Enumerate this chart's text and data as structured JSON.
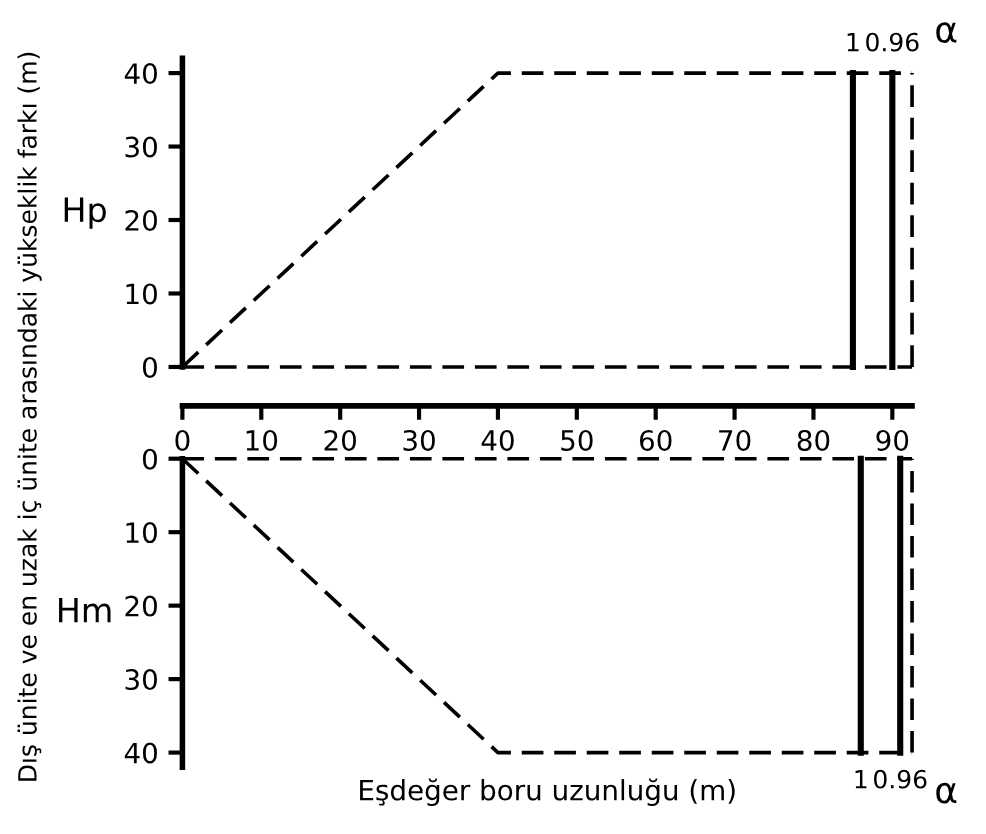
{
  "chart_data": [
    {
      "type": "line",
      "ylabel": "Hp",
      "line_style": "dashed",
      "annotations": [
        "Dış ünite ve en uzak iç ünite arasındaki yükseklik farkı (m)",
        {
          "text": "1",
          "x": 85,
          "y": 40
        },
        {
          "text": "0.96",
          "x": 90,
          "y": 40
        },
        "α"
      ],
      "series": [
        {
          "x": [
            0,
            40,
            92.5
          ],
          "values": [
            0,
            40,
            40
          ],
          "color": "#000000"
        },
        {
          "x": [
            0,
            92.5
          ],
          "values": [
            0,
            0
          ],
          "color": "#000000"
        }
      ],
      "ref_lines": [
        {
          "axis": "x",
          "value": 85,
          "color": "#000000",
          "line_style": "solid"
        },
        {
          "axis": "x",
          "value": 90,
          "color": "#000000",
          "line_style": "solid"
        },
        {
          "axis": "x",
          "value": 92.5,
          "color": "#000000",
          "line_style": "dashed"
        }
      ],
      "xlim": [
        0,
        92.5
      ],
      "ylim": [
        0,
        42
      ],
      "xticks": [
        0,
        10,
        20,
        30,
        40,
        50,
        60,
        70,
        80,
        90
      ],
      "yticks": [
        0,
        10,
        20,
        30,
        40
      ]
    },
    {
      "type": "line",
      "ylabel": "Hm",
      "xlabel": "Eşdeğer boru uzunluğu (m)",
      "line_style": "dashed",
      "annotations": [
        {
          "text": "1",
          "x": 86,
          "y": 40
        },
        {
          "text": "0.96",
          "x": 91,
          "y": 40
        },
        "α"
      ],
      "series": [
        {
          "x": [
            0,
            40,
            92.5
          ],
          "values": [
            0,
            40,
            40
          ],
          "color": "#000000"
        },
        {
          "x": [
            0,
            92.5
          ],
          "values": [
            0,
            0
          ],
          "color": "#000000"
        }
      ],
      "ref_lines": [
        {
          "axis": "x",
          "value": 86,
          "color": "#000000",
          "line_style": "solid"
        },
        {
          "axis": "x",
          "value": 91,
          "color": "#000000",
          "line_style": "solid"
        },
        {
          "axis": "x",
          "value": 92.5,
          "color": "#000000",
          "line_style": "dashed"
        }
      ],
      "xlim": [
        0,
        92.5
      ],
      "ylim": [
        42,
        0
      ],
      "yticks": [
        0,
        10,
        20,
        30,
        40
      ],
      "tick_labels": "y"
    }
  ]
}
